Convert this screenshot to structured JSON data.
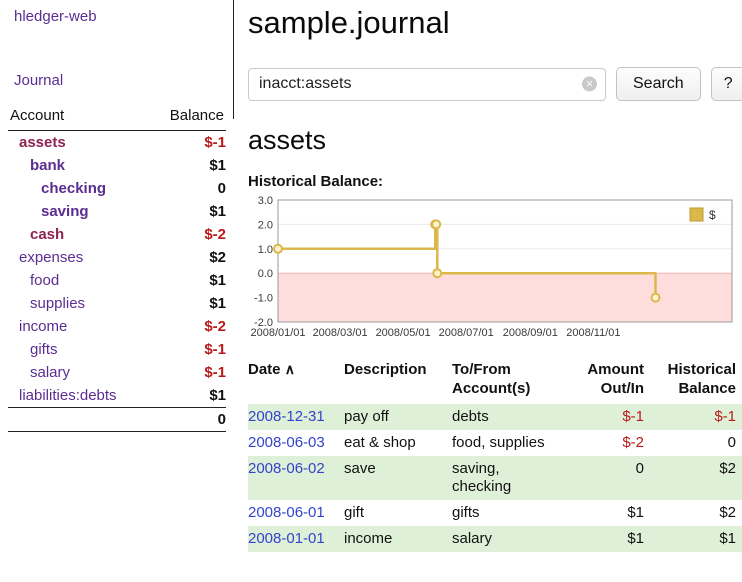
{
  "colors": {
    "link_purple": "#5c2d91",
    "account_current": "#8e2451",
    "negative": "#b91a1a",
    "date_link": "#3344cc",
    "row_green": "#dff0d8",
    "chart_line": "#dcb84a",
    "chart_marker_fill": "#fcf3cf",
    "chart_negative_region": "#ffdddd"
  },
  "sidebar": {
    "app_title": "hledger-web",
    "journal_link": "Journal",
    "accounts_table": {
      "headers": {
        "account": "Account",
        "balance": "Balance"
      },
      "rows": [
        {
          "name": "assets",
          "balance": "$-1"
        },
        {
          "name": "bank",
          "balance": "$1"
        },
        {
          "name": "checking",
          "balance": "0"
        },
        {
          "name": "saving",
          "balance": "$1"
        },
        {
          "name": "cash",
          "balance": "$-2"
        },
        {
          "name": "expenses",
          "balance": "$2"
        },
        {
          "name": "food",
          "balance": "$1"
        },
        {
          "name": "supplies",
          "balance": "$1"
        },
        {
          "name": "income",
          "balance": "$-2"
        },
        {
          "name": "gifts",
          "balance": "$-1"
        },
        {
          "name": "salary",
          "balance": "$-1"
        },
        {
          "name": "liabilities:debts",
          "balance": "$1"
        }
      ],
      "total": "0"
    }
  },
  "main": {
    "title": "sample.journal",
    "search": {
      "value": "inacct:assets",
      "clear_icon": "×",
      "search_button": "Search",
      "help_button": "?"
    },
    "account_heading": "assets",
    "chart_title": "Historical Balance:"
  },
  "chart_data": {
    "type": "line",
    "step": true,
    "title": "Historical Balance",
    "series": [
      {
        "name": "$",
        "points": [
          {
            "x": "2008-01-01",
            "y": 1
          },
          {
            "x": "2008-06-01",
            "y": 2
          },
          {
            "x": "2008-06-02",
            "y": 2
          },
          {
            "x": "2008-06-03",
            "y": 0
          },
          {
            "x": "2008-12-31",
            "y": -1
          }
        ]
      }
    ],
    "xlim": [
      "2008-01-01",
      "2009-03-15"
    ],
    "ylim": [
      -2,
      3
    ],
    "yticks": [
      "3.0",
      "2.0",
      "1.0",
      "0.0",
      "-1.0",
      "-2.0"
    ],
    "xticks": [
      {
        "x": "2008-01-01",
        "label": "2008/01/01"
      },
      {
        "x": "2008-03-01",
        "label": "2008/03/01"
      },
      {
        "x": "2008-05-01",
        "label": "2008/05/01"
      },
      {
        "x": "2008-07-01",
        "label": "2008/07/01"
      },
      {
        "x": "2008-09-01",
        "label": "2008/09/01"
      },
      {
        "x": "2008-11-01",
        "label": "2008/11/01"
      }
    ],
    "legend": {
      "label": "$",
      "position": "top-right"
    },
    "negative_region": true
  },
  "register": {
    "headers": {
      "date": "Date",
      "sort_indicator": "∧",
      "description": "Description",
      "accounts": "To/From\nAccount(s)",
      "amount": "Amount\nOut/In",
      "balance": "Historical\nBalance"
    },
    "rows": [
      {
        "date": "2008-12-31",
        "description": "pay off",
        "accounts": "debts",
        "amount": "$-1",
        "balance": "$-1"
      },
      {
        "date": "2008-06-03",
        "description": "eat & shop",
        "accounts": "food, supplies",
        "amount": "$-2",
        "balance": "0"
      },
      {
        "date": "2008-06-02",
        "description": "save",
        "accounts": "saving,\nchecking",
        "amount": "0",
        "balance": "$2"
      },
      {
        "date": "2008-06-01",
        "description": "gift",
        "accounts": "gifts",
        "amount": "$1",
        "balance": "$2"
      },
      {
        "date": "2008-01-01",
        "description": "income",
        "accounts": "salary",
        "amount": "$1",
        "balance": "$1"
      }
    ]
  }
}
